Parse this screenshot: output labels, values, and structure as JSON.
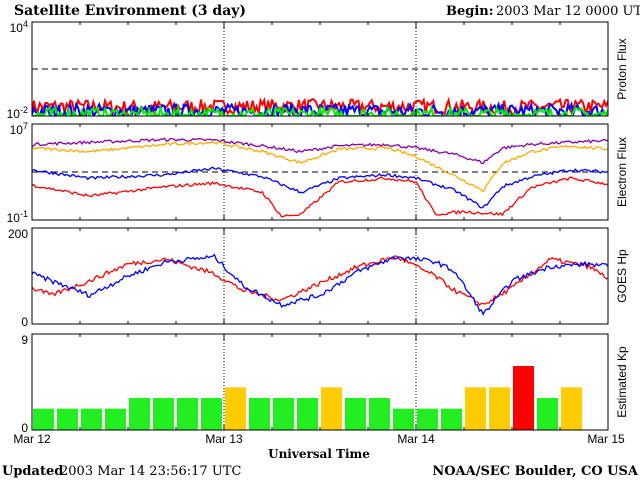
{
  "header": {
    "title": "Satellite Environment (3 day)",
    "begin_label": "Begin:",
    "begin_value": "2003 Mar 12 0000 UTC"
  },
  "footer": {
    "updated_label": "Updated",
    "updated_value": "2003 Mar 14 23:56:17 UTC",
    "source": "NOAA/SEC Boulder, CO USA"
  },
  "x_axis": {
    "label": "Universal Time",
    "ticks": [
      "Mar 12",
      "Mar 13",
      "Mar 14",
      "Mar 15"
    ]
  },
  "colors": {
    "red": "#ff0000",
    "blue": "#0000ff",
    "green": "#00ee00",
    "purple": "#8800aa",
    "orange": "#ffaa00",
    "kp_green": "#22ee22",
    "kp_yellow": "#ffcc00",
    "kp_red": "#ff0000"
  },
  "chart_data": [
    {
      "type": "line",
      "ylabel": "Proton Flux",
      "yscale": "log",
      "ylim": [
        0.01,
        10000
      ],
      "ytick_labels": [
        "10^4",
        "10^-2"
      ],
      "threshold": 10,
      "x_range_days": [
        0,
        3
      ],
      "series": [
        {
          "color": "red",
          "values": [
            0.04,
            0.04,
            0.035,
            0.04,
            0.04,
            0.045,
            0.04,
            0.04,
            0.04,
            0.035,
            0.04,
            0.04
          ]
        },
        {
          "color": "blue",
          "values": [
            0.02,
            0.022,
            0.02,
            0.021,
            0.02,
            0.022,
            0.021,
            0.02,
            0.022,
            0.02,
            0.021,
            0.02
          ]
        },
        {
          "color": "green",
          "values": [
            0.012,
            0.013,
            0.012,
            0.012,
            0.013,
            0.012,
            0.012,
            0.013,
            0.012,
            0.012,
            0.013,
            0.012
          ]
        }
      ]
    },
    {
      "type": "line",
      "ylabel": "Electron Flux",
      "yscale": "log",
      "ylim": [
        0.1,
        10000000
      ],
      "ytick_labels": [
        "10^7",
        "10^-1"
      ],
      "threshold": 1000,
      "x_range_days": [
        0,
        3
      ],
      "series": [
        {
          "color": "purple",
          "x": [
            0,
            0.3,
            0.7,
            0.95,
            1.2,
            1.4,
            1.6,
            1.85,
            2.0,
            2.2,
            2.35,
            2.45,
            2.6,
            2.8,
            3.0
          ],
          "y": [
            200000,
            300000,
            500000,
            450000,
            150000,
            50000,
            150000,
            200000,
            100000,
            30000,
            6000,
            100000,
            200000,
            300000,
            400000
          ]
        },
        {
          "color": "orange",
          "x": [
            0,
            0.3,
            0.7,
            0.95,
            1.2,
            1.4,
            1.6,
            1.85,
            2.0,
            2.2,
            2.35,
            2.45,
            2.6,
            2.8,
            3.0
          ],
          "y": [
            100000,
            50000,
            200000,
            300000,
            50000,
            6000,
            80000,
            100000,
            20000,
            500,
            30,
            5000,
            50000,
            150000,
            80000
          ]
        },
        {
          "color": "blue",
          "x": [
            0,
            0.3,
            0.7,
            0.95,
            1.2,
            1.4,
            1.6,
            1.85,
            2.0,
            2.2,
            2.35,
            2.45,
            2.6,
            2.8,
            3.0
          ],
          "y": [
            1500,
            300,
            600,
            2000,
            400,
            20,
            300,
            600,
            300,
            30,
            1,
            60,
            400,
            1500,
            1000
          ]
        },
        {
          "color": "red",
          "x": [
            0,
            0.3,
            0.7,
            0.95,
            1.2,
            1.3,
            1.4,
            1.6,
            1.85,
            2.0,
            2.1,
            2.25,
            2.45,
            2.6,
            2.8,
            3.0
          ],
          "y": [
            80,
            10,
            60,
            120,
            20,
            0.2,
            0.3,
            150,
            300,
            150,
            0.3,
            0.5,
            0.3,
            50,
            300,
            100
          ]
        }
      ]
    },
    {
      "type": "line",
      "ylabel": "GOES Hp",
      "ylim": [
        0,
        200
      ],
      "ytick_labels": [
        "200",
        "0"
      ],
      "x_range_days": [
        0,
        3
      ],
      "series": [
        {
          "color": "red",
          "x": [
            0,
            0.1,
            0.3,
            0.5,
            0.7,
            0.95,
            1.1,
            1.3,
            1.5,
            1.7,
            1.9,
            2.1,
            2.2,
            2.35,
            2.5,
            2.7,
            2.9,
            3.0
          ],
          "y": [
            75,
            60,
            90,
            125,
            135,
            105,
            70,
            50,
            85,
            120,
            140,
            100,
            70,
            40,
            75,
            135,
            120,
            95
          ]
        },
        {
          "color": "blue",
          "x": [
            0,
            0.1,
            0.3,
            0.5,
            0.7,
            0.95,
            1.1,
            1.3,
            1.5,
            1.7,
            1.9,
            2.1,
            2.2,
            2.35,
            2.5,
            2.7,
            2.9,
            3.0
          ],
          "y": [
            105,
            90,
            60,
            100,
            130,
            140,
            80,
            40,
            60,
            110,
            140,
            130,
            110,
            20,
            90,
            120,
            125,
            120
          ]
        }
      ]
    },
    {
      "type": "bar",
      "ylabel": "Estimated Kp",
      "ylim": [
        0,
        9
      ],
      "ytick_labels": [
        "9",
        "0"
      ],
      "values": [
        2,
        2,
        2,
        2,
        3,
        3,
        3,
        3,
        4,
        3,
        3,
        3,
        4,
        3,
        3,
        2,
        2,
        2,
        4,
        4,
        6,
        3,
        4
      ],
      "bar_colors": [
        "kp_green",
        "kp_green",
        "kp_green",
        "kp_green",
        "kp_green",
        "kp_green",
        "kp_green",
        "kp_green",
        "kp_yellow",
        "kp_green",
        "kp_green",
        "kp_green",
        "kp_yellow",
        "kp_green",
        "kp_green",
        "kp_green",
        "kp_green",
        "kp_green",
        "kp_yellow",
        "kp_yellow",
        "kp_red",
        "kp_green",
        "kp_yellow"
      ]
    }
  ]
}
